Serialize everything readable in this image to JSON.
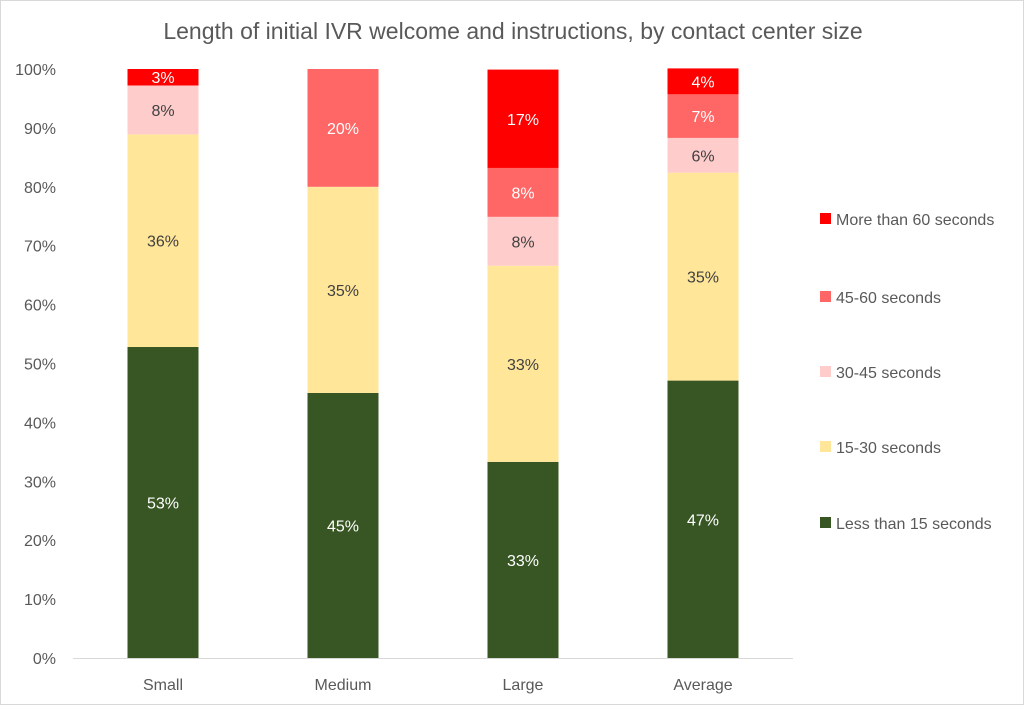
{
  "chart_data": {
    "type": "bar",
    "stacked": true,
    "title": "Length of initial IVR welcome and instructions, by contact center size",
    "xlabel": "",
    "ylabel": "",
    "ylim": [
      0,
      100
    ],
    "y_ticks": [
      "0%",
      "10%",
      "20%",
      "30%",
      "40%",
      "50%",
      "60%",
      "70%",
      "80%",
      "90%",
      "100%"
    ],
    "grid": false,
    "legend_position": "right",
    "categories": [
      "Small",
      "Medium",
      "Large",
      "Average"
    ],
    "series": [
      {
        "name": "Less than 15 seconds",
        "color": "#375623",
        "label_color": "#ffffff",
        "values": [
          52.8,
          45,
          33.3,
          47.1
        ],
        "labels": [
          "53%",
          "45%",
          "33%",
          "47%"
        ]
      },
      {
        "name": "15-30 seconds",
        "color": "#FFE699",
        "label_color": "#404040",
        "values": [
          36.1,
          35,
          33.3,
          35.3
        ],
        "labels": [
          "36%",
          "35%",
          "33%",
          "35%"
        ]
      },
      {
        "name": "30-45 seconds",
        "color": "#FFCCCC",
        "label_color": "#404040",
        "values": [
          8.3,
          0,
          8.3,
          5.9
        ],
        "labels": [
          "8%",
          "",
          "8%",
          "6%"
        ]
      },
      {
        "name": "45-60 seconds",
        "color": "#FF6666",
        "label_color": "#ffffff",
        "values": [
          0,
          20,
          8.3,
          7.4
        ],
        "labels": [
          "",
          "20%",
          "8%",
          "7%"
        ]
      },
      {
        "name": "More than 60 seconds",
        "color": "#FF0000",
        "label_color": "#ffffff",
        "values": [
          2.8,
          0,
          16.7,
          4.4
        ],
        "labels": [
          "3%",
          "",
          "17%",
          "4%"
        ]
      }
    ]
  }
}
